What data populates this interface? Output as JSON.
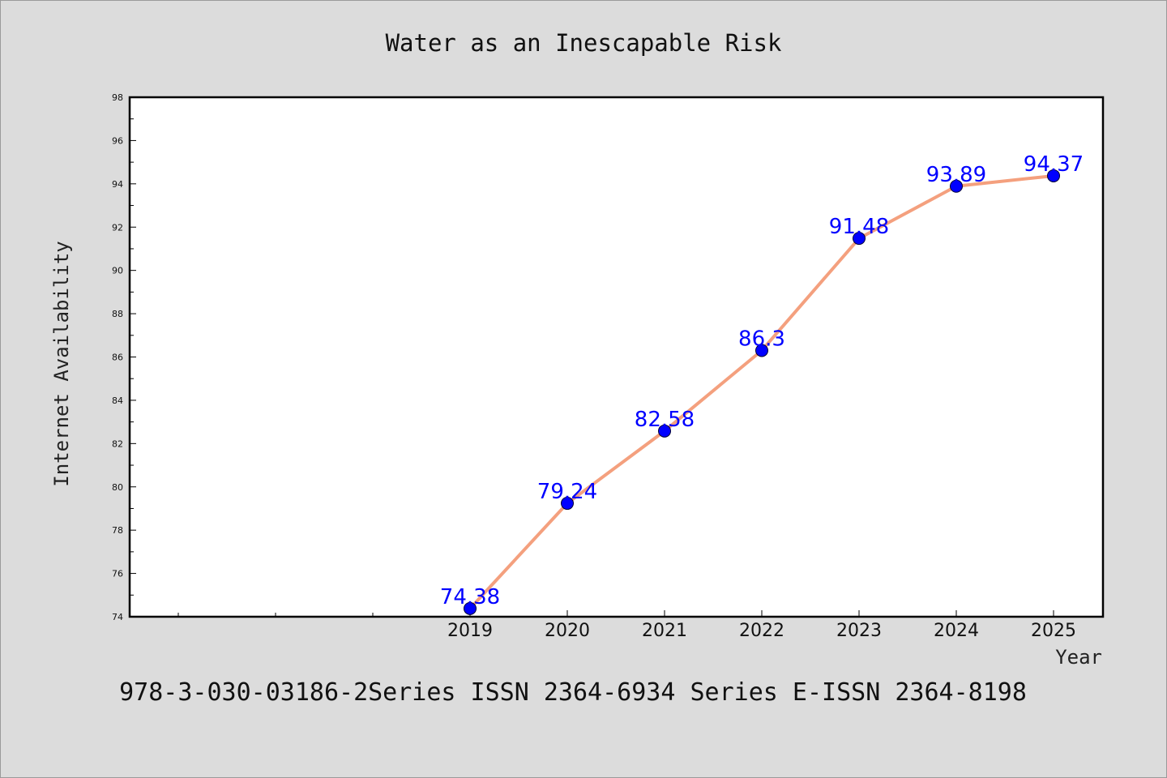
{
  "chart_data": {
    "type": "line",
    "title": "Water as an Inescapable Risk",
    "xlabel": "Year",
    "ylabel": "Internet Availability",
    "x": [
      "2019",
      "2020",
      "2021",
      "2022",
      "2023",
      "2024",
      "2025"
    ],
    "series": [
      {
        "values": [
          74.38,
          79.24,
          82.58,
          86.3,
          91.48,
          93.89,
          94.37
        ],
        "data_labels": [
          "74.38",
          "79.24",
          "82.58",
          "86.3",
          "91.48",
          "93.89",
          "94.37"
        ]
      }
    ],
    "ylim": [
      74,
      98
    ],
    "yticks": [
      "74",
      "76",
      "78",
      "80",
      "82",
      "84",
      "86",
      "88",
      "90",
      "92",
      "94",
      "96",
      "98"
    ],
    "grid": false,
    "legend": "none",
    "colors": {
      "line": "#f4a07e",
      "marker": "#0000ff",
      "data_label": "#0000ff"
    }
  },
  "footer": "978-3-030-03186-2Series ISSN 2364-6934 Series E-ISSN 2364-8198"
}
